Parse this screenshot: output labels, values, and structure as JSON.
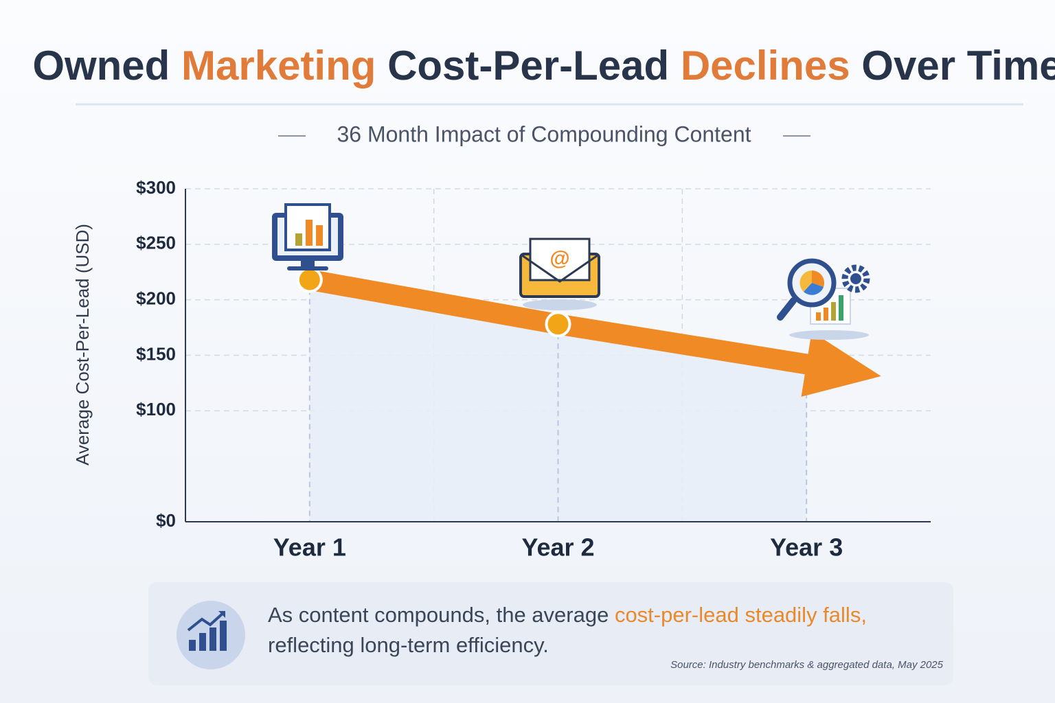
{
  "chart_data": {
    "type": "line",
    "title": [
      {
        "text": "Owned ",
        "color": "#27344a"
      },
      {
        "text": "Marketing ",
        "color": "#e07b39"
      },
      {
        "text": "Cost-Per-Lead ",
        "color": "#27344a"
      },
      {
        "text": "Declines ",
        "color": "#e07b39"
      },
      {
        "text": "Over Time",
        "color": "#27344a"
      }
    ],
    "subtitle": "36 Month Impact of Compounding Content",
    "y_label": "Average Cost-Per-Lead (USD)",
    "categories": [
      "Year 1",
      "Year 2",
      "Year 3"
    ],
    "series": [
      {
        "color": "#f08a24",
        "values": [
          218,
          178,
          142
        ]
      }
    ],
    "ylim": [
      0,
      300
    ],
    "yticks": [
      {
        "value": 0,
        "label": "$0"
      },
      {
        "value": 100,
        "label": "$100"
      },
      {
        "value": 150,
        "label": "$150"
      },
      {
        "value": 200,
        "label": "$200"
      },
      {
        "value": 250,
        "label": "$250"
      },
      {
        "value": 300,
        "label": "$300"
      }
    ],
    "grid": true,
    "callout": {
      "text": [
        {
          "text": "As content compounds, the average ",
          "color": "#3a4558"
        },
        {
          "text": "cost-per-lead steadily falls,",
          "color": "#e8892c"
        },
        {
          "text": "reflecting long-term efficiency.",
          "color": "#3a4558"
        }
      ],
      "source": "Source: Industry benchmarks & aggregated data, May 2025"
    }
  }
}
